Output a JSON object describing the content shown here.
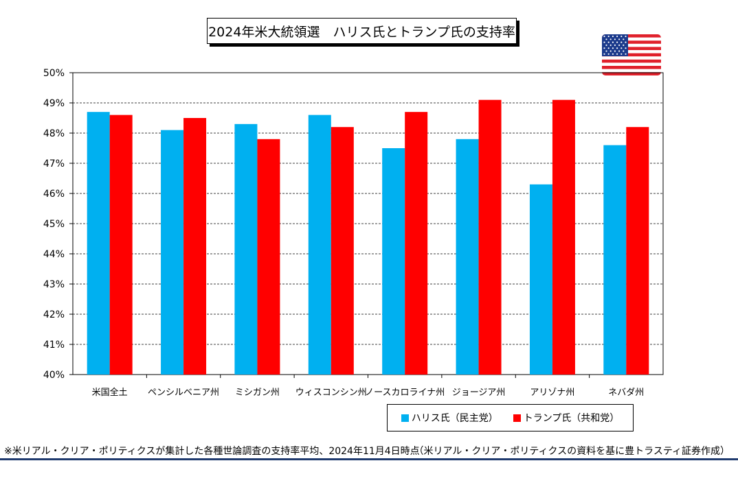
{
  "title": "2024年米大統領選　ハリス氏とトランプ氏の支持率",
  "flag_icon": "us-flag-icon",
  "colors": {
    "harris": "#00b0f0",
    "trump": "#ff0000"
  },
  "legend": {
    "harris": "ハリス氏（民主党）",
    "trump": "トランプ氏（共和党）"
  },
  "footnote": "※米リアル・クリア・ポリティクスが集計した各種世論調査の支持率平均、2024年11月4日時点",
  "source": "（米リアル・クリア・ポリティクスの資料を基に豊トラスティ証券作成）",
  "chart_data": {
    "type": "bar",
    "categories": [
      "米国全土",
      "ペンシルベニア州",
      "ミシガン州",
      "ウィスコンシン州",
      "ノースカロライナ州",
      "ジョージア州",
      "アリゾナ州",
      "ネバダ州"
    ],
    "series": [
      {
        "name": "ハリス氏（民主党）",
        "color": "#00b0f0",
        "values": [
          48.7,
          48.1,
          48.3,
          48.6,
          47.5,
          47.8,
          46.3,
          47.6
        ]
      },
      {
        "name": "トランプ氏（共和党）",
        "color": "#ff0000",
        "values": [
          48.6,
          48.5,
          47.8,
          48.2,
          48.7,
          49.1,
          49.1,
          48.2
        ]
      }
    ],
    "ylim": [
      40,
      50
    ],
    "yticks": [
      "40%",
      "41%",
      "42%",
      "43%",
      "44%",
      "45%",
      "46%",
      "47%",
      "48%",
      "49%",
      "50%"
    ],
    "grid": true,
    "legend_position": "bottom-right"
  }
}
